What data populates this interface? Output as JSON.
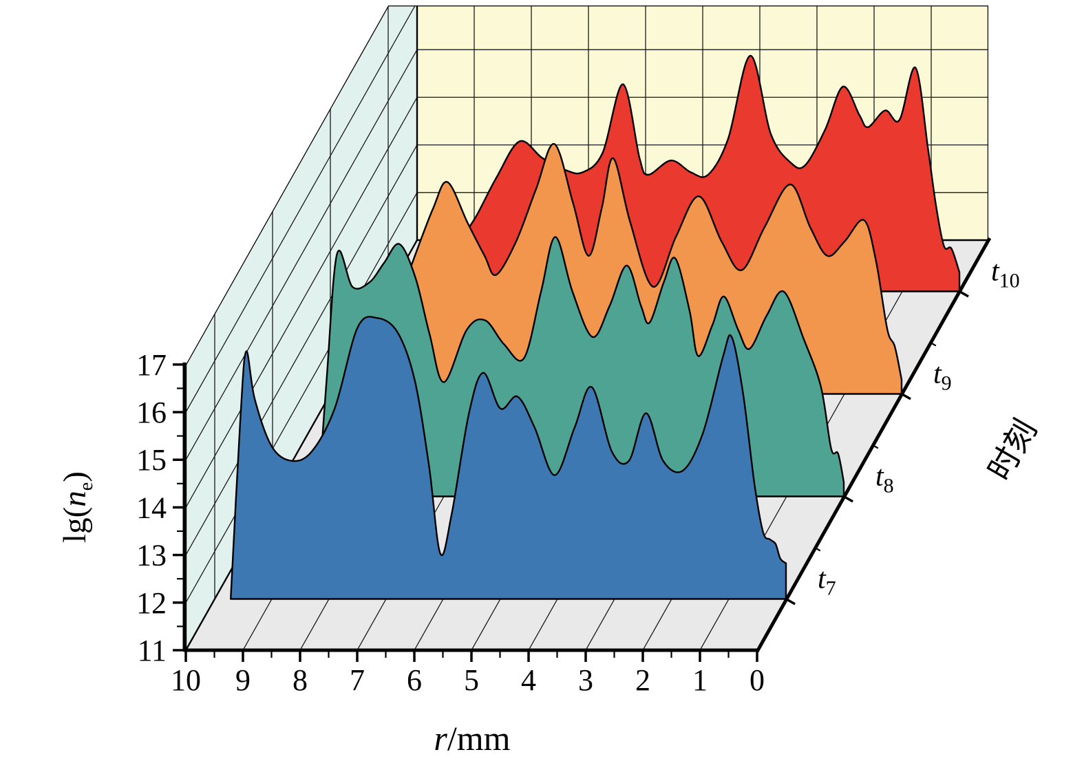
{
  "chart_data": {
    "type": "area",
    "variant": "3d-waterfall-ridgeline",
    "title": "",
    "xlabel_parts": {
      "sym": "r",
      "rest": "/mm"
    },
    "zlabel_parts": {
      "pre": "lg(",
      "sym": "n",
      "sub": "e",
      "post": ")"
    },
    "depth_label": "时刻",
    "x_tick_labels": [
      "10",
      "9",
      "8",
      "7",
      "6",
      "5",
      "4",
      "3",
      "2",
      "1",
      "0"
    ],
    "z_tick_labels": [
      "11",
      "12",
      "13",
      "14",
      "15",
      "16",
      "17"
    ],
    "x_range": [
      0,
      10
    ],
    "z_range": [
      11,
      17
    ],
    "depth_range": [
      0,
      4
    ],
    "grid": "on",
    "depth_ticks": [
      {
        "sym": "t",
        "sub": "7",
        "depth": 0.5
      },
      {
        "sym": "t",
        "sub": "8",
        "depth": 1.5
      },
      {
        "sym": "t",
        "sub": "9",
        "depth": 2.5
      },
      {
        "sym": "t",
        "sub": "10",
        "depth": 3.5
      }
    ],
    "colors": {
      "left_wall": "#e1f1ee",
      "back_wall": "#fbf9d6",
      "floor": "#e9e9e9",
      "grid_line": "#1a1a1a",
      "outline": "#000000",
      "series_t7": "#3d78b3",
      "series_t8": "#4fa392",
      "series_t9": "#f2954d",
      "series_t10": "#ea392e"
    },
    "series": [
      {
        "name": "t10",
        "sub": "10",
        "depth": 3.5,
        "color": "#ea392e",
        "points": [
          [
            9.05,
            11.0
          ],
          [
            8.8,
            11.9
          ],
          [
            8.45,
            12.6
          ],
          [
            8.1,
            13.4
          ],
          [
            7.7,
            14.15
          ],
          [
            7.3,
            13.8
          ],
          [
            6.9,
            13.55
          ],
          [
            6.6,
            13.5
          ],
          [
            6.25,
            13.9
          ],
          [
            5.89,
            15.35
          ],
          [
            5.6,
            13.8
          ],
          [
            5.45,
            13.45
          ],
          [
            5.05,
            13.75
          ],
          [
            4.7,
            13.5
          ],
          [
            4.4,
            13.45
          ],
          [
            4.05,
            14.2
          ],
          [
            3.66,
            15.95
          ],
          [
            3.3,
            14.3
          ],
          [
            2.95,
            13.7
          ],
          [
            2.7,
            13.65
          ],
          [
            2.35,
            14.4
          ],
          [
            2.04,
            15.3
          ],
          [
            1.75,
            14.7
          ],
          [
            1.6,
            14.45
          ],
          [
            1.3,
            14.8
          ],
          [
            1.05,
            14.6
          ],
          [
            0.77,
            15.7
          ],
          [
            0.55,
            14.0
          ],
          [
            0.41,
            12.8
          ],
          [
            0.27,
            11.95
          ],
          [
            0.14,
            11.9
          ],
          [
            0.0,
            11.4
          ]
        ]
      },
      {
        "name": "t9",
        "sub": "9",
        "depth": 2.5,
        "color": "#f2954d",
        "points": [
          [
            9.1,
            11.0
          ],
          [
            8.9,
            12.6
          ],
          [
            8.55,
            13.8
          ],
          [
            8.2,
            14.9
          ],
          [
            7.95,
            15.45
          ],
          [
            7.6,
            14.6
          ],
          [
            7.3,
            13.9
          ],
          [
            7.1,
            13.5
          ],
          [
            6.75,
            14.2
          ],
          [
            6.4,
            15.3
          ],
          [
            6.08,
            16.25
          ],
          [
            5.75,
            15.0
          ],
          [
            5.48,
            13.9
          ],
          [
            5.25,
            14.9
          ],
          [
            5.05,
            15.95
          ],
          [
            4.75,
            14.6
          ],
          [
            4.35,
            13.25
          ],
          [
            3.95,
            14.3
          ],
          [
            3.55,
            15.15
          ],
          [
            3.15,
            14.2
          ],
          [
            2.8,
            13.6
          ],
          [
            2.4,
            14.5
          ],
          [
            1.95,
            15.4
          ],
          [
            1.6,
            14.5
          ],
          [
            1.3,
            13.9
          ],
          [
            1.0,
            14.2
          ],
          [
            0.66,
            14.65
          ],
          [
            0.45,
            13.8
          ],
          [
            0.25,
            12.35
          ],
          [
            0.12,
            12.0
          ],
          [
            0.0,
            11.3
          ]
        ]
      },
      {
        "name": "t8",
        "sub": "8",
        "depth": 1.5,
        "color": "#4fa392",
        "points": [
          [
            9.2,
            11.0
          ],
          [
            9.05,
            13.5
          ],
          [
            8.87,
            16.1
          ],
          [
            8.6,
            15.4
          ],
          [
            8.3,
            15.5
          ],
          [
            8.05,
            15.9
          ],
          [
            7.78,
            16.3
          ],
          [
            7.5,
            15.6
          ],
          [
            7.25,
            14.4
          ],
          [
            7.0,
            13.4
          ],
          [
            6.6,
            14.5
          ],
          [
            6.28,
            14.7
          ],
          [
            5.95,
            14.2
          ],
          [
            5.6,
            13.9
          ],
          [
            5.3,
            15.3
          ],
          [
            5.05,
            16.45
          ],
          [
            4.75,
            15.3
          ],
          [
            4.4,
            14.35
          ],
          [
            4.1,
            15.0
          ],
          [
            3.8,
            15.85
          ],
          [
            3.55,
            15.0
          ],
          [
            3.4,
            14.65
          ],
          [
            3.15,
            15.5
          ],
          [
            2.95,
            16.0
          ],
          [
            2.7,
            14.9
          ],
          [
            2.55,
            13.95
          ],
          [
            2.3,
            14.6
          ],
          [
            2.1,
            15.2
          ],
          [
            1.85,
            14.5
          ],
          [
            1.65,
            14.1
          ],
          [
            1.35,
            14.8
          ],
          [
            1.05,
            15.3
          ],
          [
            0.7,
            14.3
          ],
          [
            0.4,
            13.3
          ],
          [
            0.22,
            12.0
          ],
          [
            0.1,
            11.9
          ],
          [
            0.0,
            11.3
          ]
        ]
      },
      {
        "name": "t7",
        "sub": "7",
        "depth": 0.5,
        "color": "#3d78b3",
        "points": [
          [
            9.72,
            11.0
          ],
          [
            9.55,
            14.8
          ],
          [
            9.45,
            16.2
          ],
          [
            9.3,
            15.2
          ],
          [
            9.0,
            14.2
          ],
          [
            8.65,
            13.9
          ],
          [
            8.3,
            14.1
          ],
          [
            7.9,
            15.0
          ],
          [
            7.5,
            16.7
          ],
          [
            7.15,
            16.9
          ],
          [
            6.8,
            16.6
          ],
          [
            6.5,
            15.6
          ],
          [
            6.25,
            13.8
          ],
          [
            6.05,
            11.95
          ],
          [
            5.85,
            12.8
          ],
          [
            5.55,
            14.9
          ],
          [
            5.3,
            15.75
          ],
          [
            5.0,
            15.0
          ],
          [
            4.7,
            15.25
          ],
          [
            4.4,
            14.6
          ],
          [
            4.05,
            13.6
          ],
          [
            3.7,
            14.6
          ],
          [
            3.4,
            15.45
          ],
          [
            3.05,
            14.1
          ],
          [
            2.75,
            13.9
          ],
          [
            2.45,
            14.9
          ],
          [
            2.15,
            13.9
          ],
          [
            1.8,
            13.7
          ],
          [
            1.45,
            14.5
          ],
          [
            1.1,
            16.1
          ],
          [
            0.95,
            16.5
          ],
          [
            0.75,
            15.3
          ],
          [
            0.55,
            13.4
          ],
          [
            0.4,
            12.4
          ],
          [
            0.28,
            12.25
          ],
          [
            0.18,
            12.15
          ],
          [
            0.1,
            11.85
          ],
          [
            0.0,
            11.75
          ]
        ]
      }
    ]
  }
}
